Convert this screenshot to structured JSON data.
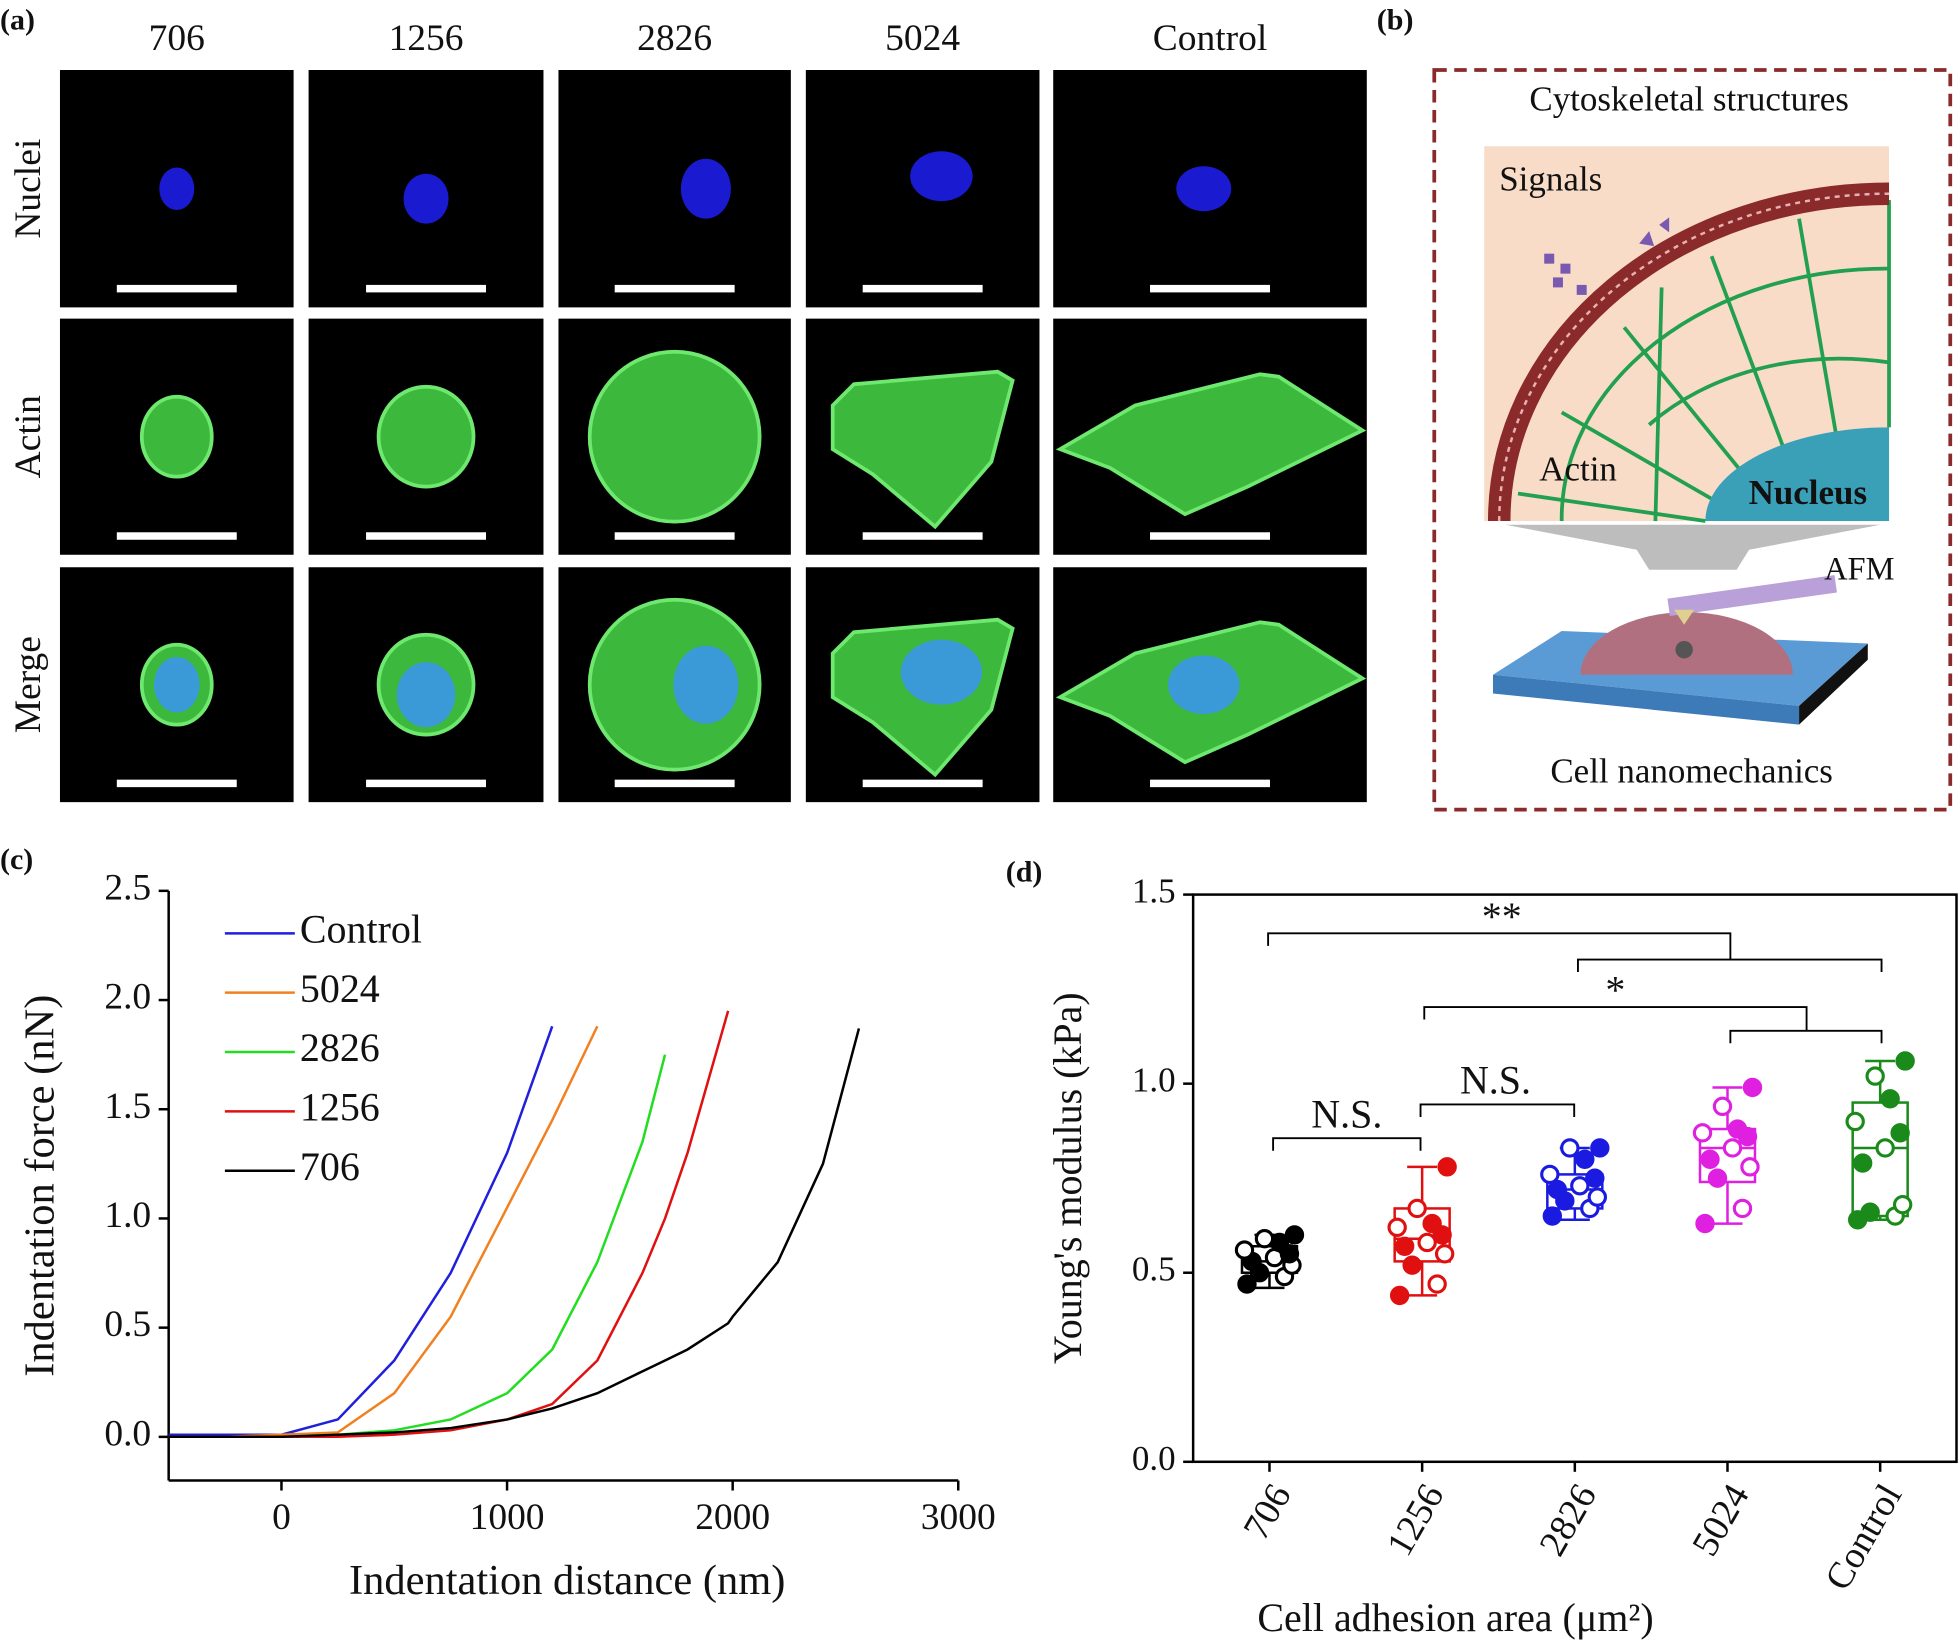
{
  "panel_a": {
    "label": "(a)",
    "columns": [
      "706",
      "1256",
      "2826",
      "5024",
      "Control"
    ],
    "rows": [
      "Nuclei",
      "Actin",
      "Merge"
    ]
  },
  "panel_b": {
    "label": "(b)",
    "title": "Cytoskeletal structures",
    "signals": "Signals",
    "actin": "Actin",
    "nucleus": "Nucleus",
    "afm": "AFM",
    "caption": "Cell nanomechanics"
  },
  "chart_data": [
    {
      "type": "line",
      "label": "(c)",
      "xlabel": "Indentation distance (nm)",
      "ylabel": "Indentation force (nN)",
      "xlim": [
        -500,
        3000
      ],
      "xticks": [
        0,
        1000,
        2000,
        3000
      ],
      "ylim": [
        -0.2,
        2.5
      ],
      "yticks": [
        {
          "value": 0,
          "label": "0.0"
        },
        0.5,
        {
          "value": 1,
          "label": "1.0"
        },
        1.5,
        {
          "value": 2,
          "label": "2.0"
        },
        2.5
      ],
      "legend": "upper-left",
      "x": [
        -500,
        -250,
        0,
        250,
        500,
        750,
        1000,
        1200,
        1400,
        1600,
        1700,
        1800,
        1980,
        2000,
        2200,
        2400,
        2560
      ],
      "series": [
        {
          "name": "Control",
          "color": "#1f1fdc",
          "values": [
            0.01,
            0.01,
            0.01,
            0.08,
            0.35,
            0.75,
            1.3,
            1.88,
            null,
            null,
            null,
            null,
            null,
            null,
            null,
            null,
            null
          ]
        },
        {
          "name": "5024",
          "color": "#f08020",
          "values": [
            0,
            0,
            0.01,
            0.02,
            0.2,
            0.55,
            1.05,
            1.45,
            1.88,
            null,
            null,
            null,
            null,
            null,
            null,
            null,
            null
          ]
        },
        {
          "name": "2826",
          "color": "#22dd22",
          "values": [
            0,
            0,
            0,
            0.01,
            0.03,
            0.08,
            0.2,
            0.4,
            0.8,
            1.35,
            1.75,
            null,
            null,
            null,
            null,
            null,
            null
          ]
        },
        {
          "name": "1256",
          "color": "#e01010",
          "values": [
            0,
            0,
            0,
            0,
            0.01,
            0.03,
            0.08,
            0.15,
            0.35,
            0.75,
            1.0,
            1.3,
            1.95,
            null,
            null,
            null,
            null
          ]
        },
        {
          "name": "706",
          "color": "#000000",
          "values": [
            0,
            0,
            0,
            0.01,
            0.02,
            0.04,
            0.08,
            0.13,
            0.2,
            0.3,
            0.35,
            0.4,
            0.52,
            0.55,
            0.8,
            1.25,
            1.87
          ]
        }
      ]
    },
    {
      "type": "box",
      "label": "(d)",
      "xlabel": "Cell adhesion area (μm²)",
      "ylabel": "Young's modulus (kPa)",
      "ylim": [
        0,
        1.5
      ],
      "yticks": [
        {
          "value": 0,
          "label": "0.0"
        },
        0.5,
        {
          "value": 1,
          "label": "1.0"
        },
        1.5
      ],
      "categories": [
        "706",
        "1256",
        "2826",
        "5024",
        "Control"
      ],
      "boxes": [
        {
          "color": "#000000",
          "min": 0.46,
          "q1": 0.5,
          "median": 0.53,
          "q3": 0.57,
          "max": 0.6,
          "points": [
            0.47,
            0.49,
            0.5,
            0.52,
            0.53,
            0.54,
            0.55,
            0.56,
            0.58,
            0.59,
            0.6
          ]
        },
        {
          "color": "#e01010",
          "min": 0.44,
          "q1": 0.53,
          "median": 0.59,
          "q3": 0.67,
          "max": 0.78,
          "points": [
            0.44,
            0.47,
            0.52,
            0.55,
            0.57,
            0.58,
            0.6,
            0.62,
            0.63,
            0.67,
            0.78
          ]
        },
        {
          "color": "#1a1ae0",
          "min": 0.64,
          "q1": 0.67,
          "median": 0.72,
          "q3": 0.76,
          "max": 0.83,
          "points": [
            0.65,
            0.67,
            0.69,
            0.7,
            0.72,
            0.73,
            0.75,
            0.76,
            0.8,
            0.83,
            0.83
          ]
        },
        {
          "color": "#e020e0",
          "min": 0.63,
          "q1": 0.74,
          "median": 0.83,
          "q3": 0.88,
          "max": 0.99,
          "points": [
            0.63,
            0.67,
            0.75,
            0.78,
            0.8,
            0.83,
            0.86,
            0.87,
            0.88,
            0.94,
            0.99
          ]
        },
        {
          "color": "#1a8a1a",
          "min": 0.64,
          "q1": 0.65,
          "median": 0.83,
          "q3": 0.95,
          "max": 1.06,
          "points": [
            0.64,
            0.65,
            0.66,
            0.68,
            0.79,
            0.83,
            0.87,
            0.9,
            0.96,
            1.02,
            1.06
          ]
        }
      ],
      "annotations": [
        "**",
        "*",
        "N.S.",
        "N.S."
      ]
    }
  ]
}
